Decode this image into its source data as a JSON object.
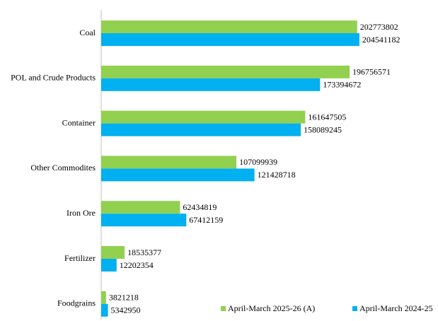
{
  "chart_data": {
    "type": "bar",
    "orientation": "horizontal",
    "categories": [
      "Coal",
      "POL and Crude Products",
      "Container",
      "Other Commodites",
      "Iron Ore",
      "Fertilizer",
      "Foodgrains"
    ],
    "series": [
      {
        "name": "April-March 2025-26 (A)",
        "color": "#92d050",
        "values": [
          202773802,
          196756571,
          161647505,
          107099939,
          62434819,
          18535377,
          3821218
        ]
      },
      {
        "name": "April-March 2024-25",
        "color": "#00b0f0",
        "values": [
          204541182,
          173394672,
          158089245,
          121428718,
          67412159,
          12202354,
          5342950
        ]
      }
    ],
    "xlim": [
      0,
      250000000
    ],
    "legend": "bottom-right"
  }
}
